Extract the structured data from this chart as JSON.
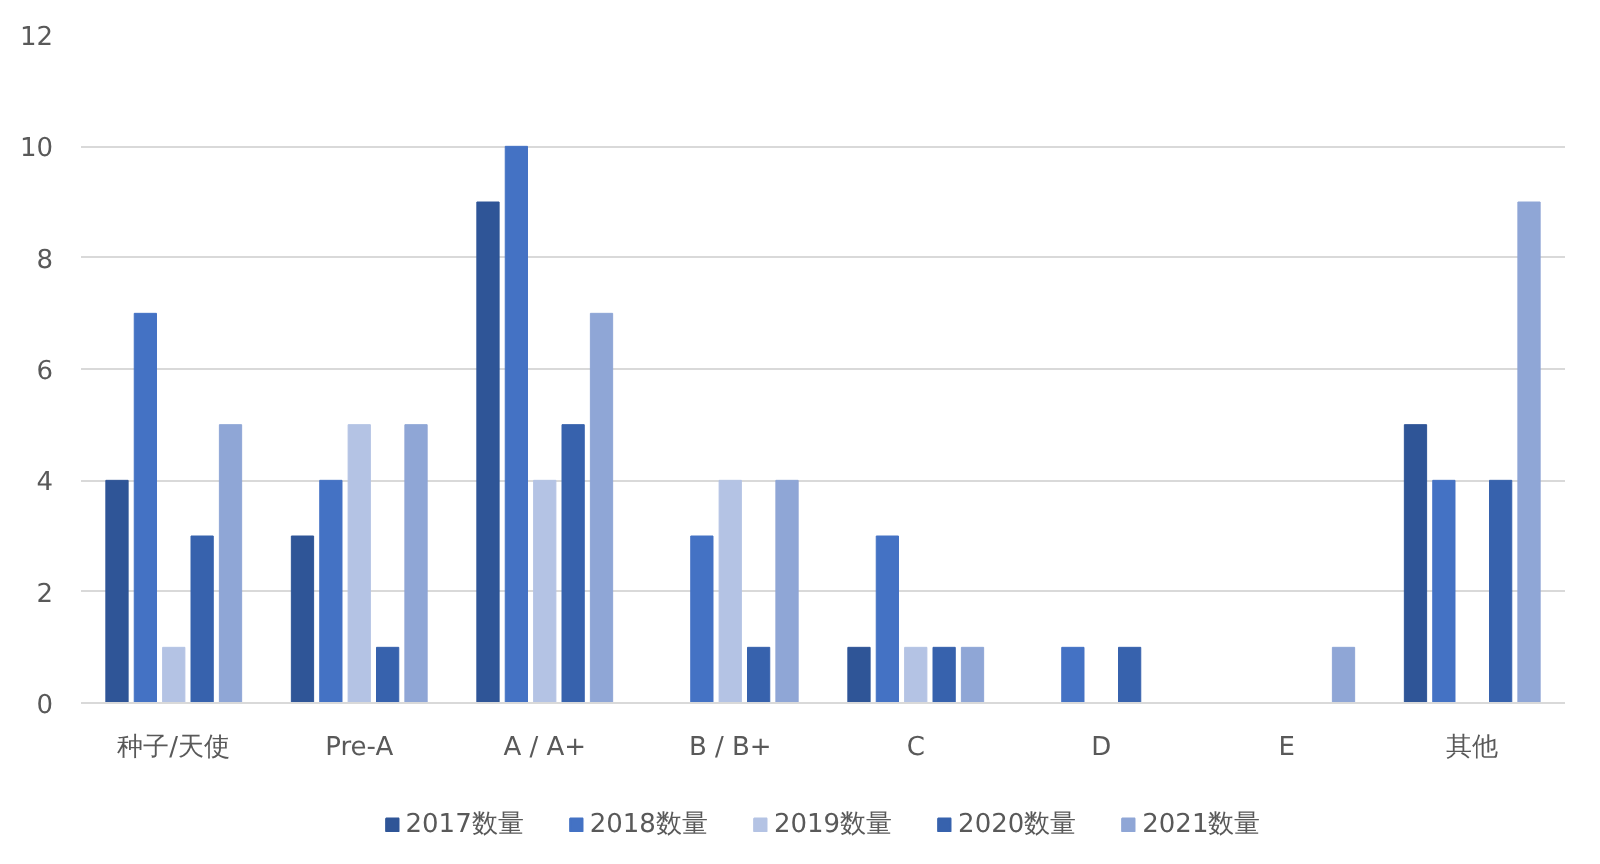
{
  "chart_data": {
    "type": "bar",
    "categories": [
      "种子/天使",
      "Pre-A",
      "A / A+",
      "B / B+",
      "C",
      "D",
      "E",
      "其他"
    ],
    "series": [
      {
        "name": "2017数量",
        "color": "#2f5597",
        "values": [
          4,
          3,
          9,
          null,
          1,
          null,
          null,
          5
        ]
      },
      {
        "name": "2018数量",
        "color": "#4472c4",
        "values": [
          7,
          4,
          10,
          3,
          3,
          1,
          null,
          4
        ]
      },
      {
        "name": "2019数量",
        "color": "#b4c3e4",
        "values": [
          1,
          5,
          4,
          4,
          1,
          null,
          null,
          null
        ]
      },
      {
        "name": "2020数量",
        "color": "#3762ad",
        "values": [
          3,
          1,
          5,
          1,
          1,
          1,
          null,
          4
        ]
      },
      {
        "name": "2021数量",
        "color": "#8fa6d6",
        "values": [
          5,
          5,
          7,
          4,
          1,
          null,
          1,
          9
        ]
      }
    ],
    "ylim": [
      0,
      12
    ],
    "yticks": [
      0,
      2,
      4,
      6,
      8,
      10,
      12
    ],
    "grid": "y",
    "legend": "bottom"
  }
}
